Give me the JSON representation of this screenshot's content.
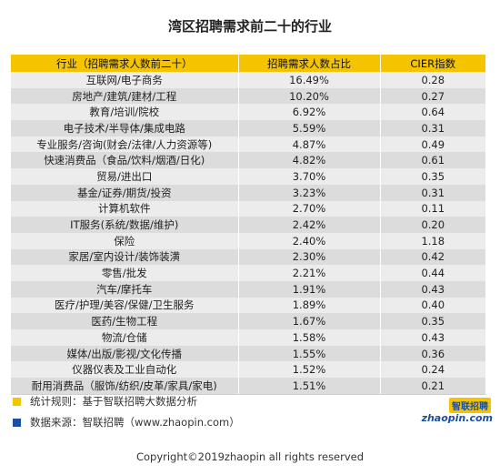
{
  "title": "湾区招聘需求前二十的行业",
  "chart_data": {
    "type": "table",
    "columns": [
      "行业（招聘需求人数前二十）",
      "招聘需求人数占比",
      "CIER指数"
    ],
    "rows": [
      [
        "互联网/电子商务",
        "16.49%",
        "0.28"
      ],
      [
        "房地产/建筑/建材/工程",
        "10.20%",
        "0.27"
      ],
      [
        "教育/培训/院校",
        "6.92%",
        "0.64"
      ],
      [
        "电子技术/半导体/集成电路",
        "5.59%",
        "0.31"
      ],
      [
        "专业服务/咨询(财会/法律/人力资源等)",
        "4.87%",
        "0.49"
      ],
      [
        "快速消费品（食品/饮料/烟酒/日化)",
        "4.82%",
        "0.61"
      ],
      [
        "贸易/进出口",
        "3.70%",
        "0.35"
      ],
      [
        "基金/证券/期货/投资",
        "3.23%",
        "0.31"
      ],
      [
        "计算机软件",
        "2.70%",
        "0.11"
      ],
      [
        "IT服务(系统/数据/维护)",
        "2.42%",
        "0.20"
      ],
      [
        "保险",
        "2.40%",
        "1.18"
      ],
      [
        "家居/室内设计/装饰装潢",
        "2.30%",
        "0.42"
      ],
      [
        "零售/批发",
        "2.21%",
        "0.44"
      ],
      [
        "汽车/摩托车",
        "1.91%",
        "0.43"
      ],
      [
        "医疗/护理/美容/保健/卫生服务",
        "1.89%",
        "0.40"
      ],
      [
        "医药/生物工程",
        "1.67%",
        "0.35"
      ],
      [
        "物流/仓储",
        "1.58%",
        "0.43"
      ],
      [
        "媒体/出版/影视/文化传播",
        "1.55%",
        "0.36"
      ],
      [
        "仪器仪表及工业自动化",
        "1.52%",
        "0.24"
      ],
      [
        "耐用消费品（服饰/纺织/皮革/家具/家电)",
        "1.51%",
        "0.21"
      ]
    ]
  },
  "notes": {
    "rule": "统计规则：基于智联招聘大数据分析",
    "source": "数据来源：智联招聘（www.zhaopin.com）"
  },
  "colors": {
    "header": "#f5c400",
    "rule_square": "#f5c400",
    "source_square": "#1a4fa3"
  },
  "logo": {
    "cn": "智联招聘",
    "en": "zhaopin.com"
  },
  "copyright": "Copyright©2019zhaopin all rights reserved"
}
